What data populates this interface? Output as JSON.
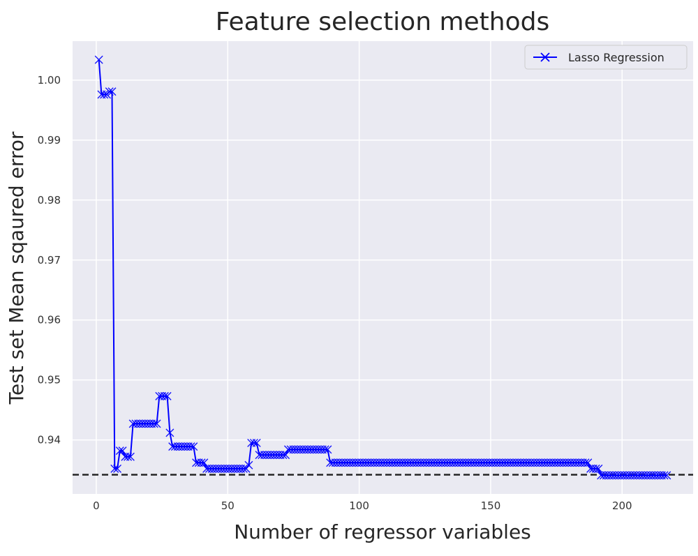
{
  "chart_data": {
    "type": "line",
    "title": "Feature selection methods",
    "xlabel": "Number of regressor variables",
    "ylabel": "Test set Mean sqaured error",
    "xlim": [
      -9,
      227
    ],
    "ylim": [
      0.931,
      1.0065
    ],
    "xticks": [
      0,
      50,
      100,
      150,
      200
    ],
    "yticks": [
      0.94,
      0.95,
      0.96,
      0.97,
      0.98,
      0.99,
      1.0
    ],
    "xtick_labels": [
      "0",
      "50",
      "100",
      "150",
      "200"
    ],
    "ytick_labels": [
      "0.94",
      "0.95",
      "0.96",
      "0.97",
      "0.98",
      "0.99",
      "1.00"
    ],
    "grid": true,
    "legend_position": "top-right",
    "background_color": "#eaeaf2",
    "reference_line": {
      "y": 0.9342,
      "style": "dashed",
      "color": "#262626"
    },
    "series": [
      {
        "name": "Lasso Regression",
        "color": "#0000ff",
        "marker": "x",
        "steps": [
          [
            1,
            1,
            1.0034
          ],
          [
            2,
            4,
            0.9976
          ],
          [
            5,
            6,
            0.9981
          ],
          [
            7,
            8,
            0.9352
          ],
          [
            9,
            10,
            0.9382
          ],
          [
            11,
            13,
            0.9372
          ],
          [
            14,
            23,
            0.9427
          ],
          [
            24,
            27,
            0.9473
          ],
          [
            28,
            28,
            0.9412
          ],
          [
            29,
            37,
            0.9389
          ],
          [
            38,
            41,
            0.9362
          ],
          [
            42,
            57,
            0.9352
          ],
          [
            58,
            58,
            0.9358
          ],
          [
            59,
            61,
            0.9395
          ],
          [
            62,
            72,
            0.9375
          ],
          [
            73,
            88,
            0.9384
          ],
          [
            89,
            187,
            0.9362
          ],
          [
            188,
            191,
            0.9352
          ],
          [
            192,
            217,
            0.9341
          ]
        ]
      }
    ]
  }
}
